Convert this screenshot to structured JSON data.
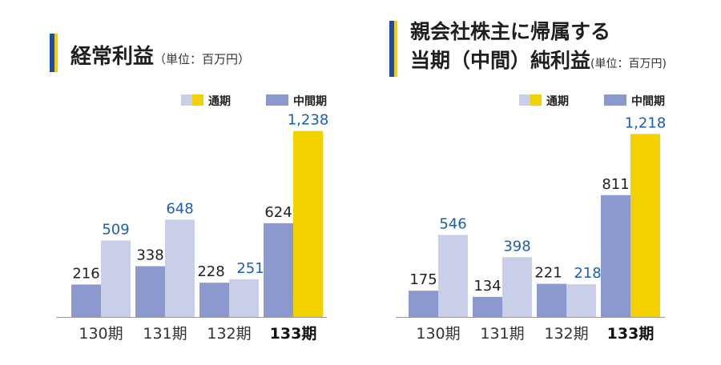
{
  "colors": {
    "half_bar": "#8b99cf",
    "full_bar_past": "#c9cfe8",
    "full_bar_current": "#f3d000",
    "half_label": "#222222",
    "full_label": "#1a5fb4",
    "accent_blue": "#1f4aa8",
    "accent_yellow": "#f3d000",
    "baseline": "#999999"
  },
  "legend": {
    "full_year": "通期",
    "half_year": "中間期"
  },
  "charts": [
    {
      "title": "経常利益",
      "unit": "（単位：百万円）"
    },
    {
      "title_line1": "親会社株主に帰属する",
      "title_line2": "当期（中間）純利益",
      "unit": "(単位：百万円)"
    }
  ],
  "chart_data": [
    {
      "type": "bar",
      "title": "経常利益（単位：百万円）",
      "categories": [
        "130期",
        "131期",
        "132期",
        "133期"
      ],
      "category_labels": [
        "130期",
        "131期",
        "132期",
        "133期"
      ],
      "highlight_category": "133期",
      "series": [
        {
          "name": "中間期",
          "values": [
            216,
            338,
            228,
            624
          ],
          "labels": [
            "216",
            "338",
            "228",
            "624"
          ]
        },
        {
          "name": "通期",
          "values": [
            509,
            648,
            251,
            1238
          ],
          "labels": [
            "509",
            "648",
            "251",
            "1,238"
          ]
        }
      ],
      "ylim": [
        0,
        1300
      ],
      "legend_position": "top-right",
      "grid": false
    },
    {
      "type": "bar",
      "title": "親会社株主に帰属する当期（中間）純利益(単位：百万円)",
      "categories": [
        "130期",
        "131期",
        "132期",
        "133期"
      ],
      "category_labels": [
        "130期",
        "131期",
        "132期",
        "133期"
      ],
      "highlight_category": "133期",
      "series": [
        {
          "name": "中間期",
          "values": [
            175,
            134,
            221,
            811
          ],
          "labels": [
            "175",
            "134",
            "221",
            "811"
          ]
        },
        {
          "name": "通期",
          "values": [
            546,
            398,
            218,
            1218
          ],
          "labels": [
            "546",
            "398",
            "218",
            "1,218"
          ]
        }
      ],
      "ylim": [
        0,
        1300
      ],
      "legend_position": "top-right",
      "grid": false
    }
  ]
}
